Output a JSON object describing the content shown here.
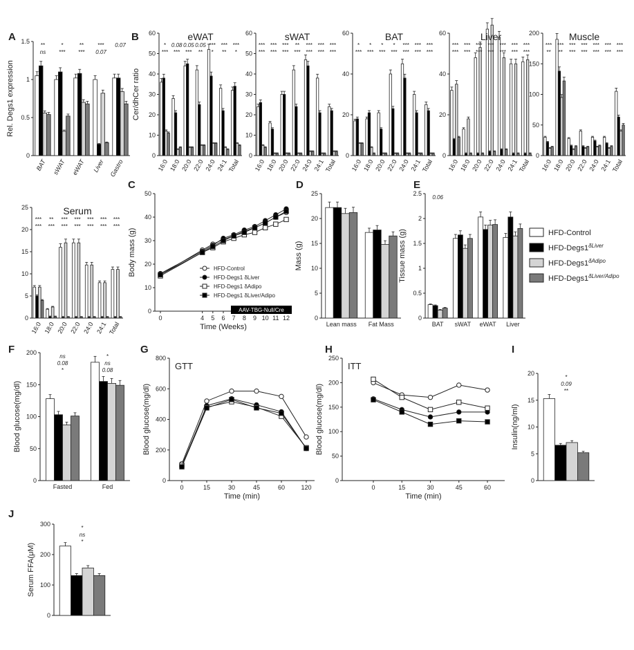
{
  "colors": {
    "control": "#ffffff",
    "liver": "#000000",
    "adipo": "#d4d4d4",
    "liver_adipo": "#7a7a7a",
    "stroke": "#222222"
  },
  "legend_main": {
    "entries": [
      {
        "label": "HFD-Control",
        "sub": ""
      },
      {
        "label": "HFD-Degs1",
        "sub": "δLiver"
      },
      {
        "label": "HFD-Degs1",
        "sub": "δAdipo"
      },
      {
        "label": "HFD-Degs1",
        "sub": "δLiver/Adipo"
      }
    ]
  },
  "chart_data": [
    {
      "id": "A",
      "type": "bar",
      "panel_label": "A",
      "ylabel": "Rel. Degs1 expression",
      "ylim": [
        0,
        1.5
      ],
      "yticks": [
        0,
        0.5,
        1.0,
        1.5
      ],
      "categories": [
        "BAT",
        "sWAT",
        "eWAT",
        "Liver",
        "Gastro"
      ],
      "series": [
        {
          "name": "HFD-Control",
          "values": [
            1.05,
            1.0,
            1.02,
            1.0,
            1.02
          ]
        },
        {
          "name": "HFD-Degs1 δLiver",
          "values": [
            1.18,
            1.1,
            1.08,
            0.15,
            1.02
          ]
        },
        {
          "name": "HFD-Degs1 δAdipo",
          "values": [
            0.56,
            0.32,
            0.7,
            0.82,
            0.84
          ]
        },
        {
          "name": "HFD-Degs1 δLiver/Adipo",
          "values": [
            0.54,
            0.52,
            0.68,
            0.17,
            0.68
          ]
        }
      ],
      "annotations": [
        "**",
        "*",
        "**",
        "***",
        "0.07",
        "ns",
        "***",
        "***",
        "0.07"
      ]
    },
    {
      "id": "B1",
      "type": "bar",
      "panel_label": "B",
      "title": "eWAT",
      "ylabel": "Cer/dhCer ratio",
      "ylim": [
        0,
        60
      ],
      "yticks": [
        0,
        10,
        20,
        30,
        40,
        50,
        60
      ],
      "categories": [
        "16:0",
        "18:0",
        "20:0",
        "22:0",
        "24:0",
        "24:1",
        "Total"
      ],
      "series": [
        {
          "name": "HFD-Control",
          "values": [
            36,
            28,
            44,
            42,
            52,
            33,
            32
          ]
        },
        {
          "name": "HFD-Degs1 δLiver",
          "values": [
            38,
            21,
            45,
            25,
            39,
            22,
            34
          ]
        },
        {
          "name": "HFD-Degs1 δAdipo",
          "values": [
            12,
            3,
            4,
            5,
            6,
            4,
            6
          ]
        },
        {
          "name": "HFD-Degs1 δLiver/Adipo",
          "values": [
            11,
            4,
            4,
            5,
            6,
            3,
            5
          ]
        }
      ],
      "annotations": [
        "*",
        "0.08",
        "0.05",
        "0.05",
        "***",
        "***",
        "***",
        "***",
        "***",
        "***",
        "**",
        "*",
        "**",
        "*"
      ]
    },
    {
      "id": "B2",
      "type": "bar",
      "title": "sWAT",
      "ylim": [
        0,
        60
      ],
      "yticks": [
        0,
        10,
        20,
        30,
        40,
        50,
        60
      ],
      "categories": [
        "16:0",
        "18:0",
        "20:0",
        "22:0",
        "24:0",
        "24:1",
        "Total"
      ],
      "series": [
        {
          "name": "HFD-Control",
          "values": [
            24,
            16,
            30,
            42,
            47,
            38,
            24
          ]
        },
        {
          "name": "HFD-Degs1 δLiver",
          "values": [
            26,
            13,
            30,
            24,
            44,
            21,
            22
          ]
        },
        {
          "name": "HFD-Degs1 δAdipo",
          "values": [
            5,
            1,
            1,
            1,
            2,
            1,
            2
          ]
        },
        {
          "name": "HFD-Degs1 δLiver/Adipo",
          "values": [
            4,
            1,
            1,
            1,
            2,
            1,
            2
          ]
        }
      ],
      "annotations": [
        "***",
        "***",
        "***",
        "**",
        "***",
        "***",
        "***",
        "***",
        "***",
        "***",
        "***",
        "***",
        "***",
        "***"
      ]
    },
    {
      "id": "B3",
      "type": "bar",
      "title": "BAT",
      "ylim": [
        0,
        60
      ],
      "yticks": [
        0,
        20,
        40,
        60
      ],
      "categories": [
        "16:0",
        "18:0",
        "20:0",
        "22:0",
        "24:0",
        "24:1",
        "Total"
      ],
      "series": [
        {
          "name": "HFD-Control",
          "values": [
            17,
            18,
            21,
            40,
            45,
            30,
            25
          ]
        },
        {
          "name": "HFD-Degs1 δLiver",
          "values": [
            18,
            21,
            13,
            23,
            38,
            21,
            22
          ]
        },
        {
          "name": "HFD-Degs1 δAdipo",
          "values": [
            6,
            4,
            1,
            1,
            1,
            1,
            1
          ]
        },
        {
          "name": "HFD-Degs1 δLiver/Adipo",
          "values": [
            6,
            1,
            1,
            1,
            1,
            1,
            1
          ]
        }
      ],
      "annotations": [
        "*",
        "*",
        "*",
        "*",
        "***",
        "***",
        "***",
        "***",
        "***",
        "***",
        "***",
        "***",
        "***",
        "***"
      ]
    },
    {
      "id": "B4",
      "type": "bar",
      "title": "Liver",
      "ylim": [
        0,
        60
      ],
      "yticks": [
        0,
        20,
        40,
        60
      ],
      "categories": [
        "16:0",
        "18:0",
        "20:0",
        "22:0",
        "24:0",
        "24:1",
        "Total"
      ],
      "series": [
        {
          "name": "HFD-Control",
          "values": [
            32,
            13,
            48,
            62,
            58,
            45,
            46
          ]
        },
        {
          "name": "HFD-Degs1 δLiver",
          "values": [
            8,
            1,
            1,
            2,
            3,
            1,
            1
          ]
        },
        {
          "name": "HFD-Degs1 δAdipo",
          "values": [
            35,
            18,
            53,
            64,
            48,
            45,
            47
          ]
        },
        {
          "name": "HFD-Degs1 δLiver/Adipo",
          "values": [
            9,
            1,
            1,
            2,
            3,
            1,
            1
          ]
        }
      ],
      "annotations": [
        "***",
        "***",
        "***",
        "***",
        "***",
        "***",
        "***",
        "***",
        "***",
        "***",
        "***",
        "***",
        "***",
        "***"
      ]
    },
    {
      "id": "B5",
      "type": "bar",
      "title": "Muscle",
      "ylim": [
        0,
        200
      ],
      "yticks": [
        0,
        50,
        100,
        150,
        200
      ],
      "categories": [
        "16:0",
        "18:0",
        "20:0",
        "22:0",
        "24:0",
        "24:1",
        "Total"
      ],
      "series": [
        {
          "name": "HFD-Control",
          "values": [
            30,
            190,
            28,
            40,
            30,
            30,
            105
          ]
        },
        {
          "name": "HFD-Degs1 δLiver",
          "values": [
            22,
            138,
            16,
            15,
            24,
            20,
            63
          ]
        },
        {
          "name": "HFD-Degs1 δAdipo",
          "values": [
            12,
            95,
            10,
            12,
            14,
            12,
            40
          ]
        },
        {
          "name": "HFD-Degs1 δLiver/Adipo",
          "values": [
            14,
            122,
            15,
            14,
            16,
            15,
            50
          ]
        }
      ],
      "annotations": [
        "***",
        "***",
        "***",
        "***",
        "***",
        "***",
        "***",
        "**",
        "**",
        "***",
        "***",
        "***",
        "***",
        "***"
      ]
    },
    {
      "id": "Serum",
      "type": "bar",
      "title": "Serum",
      "ylim": [
        0,
        25
      ],
      "yticks": [
        0,
        5,
        10,
        15,
        20,
        25
      ],
      "categories": [
        "16:0",
        "18:0",
        "20:0",
        "22:0",
        "24:0",
        "24:1",
        "Total"
      ],
      "series": [
        {
          "name": "HFD-Control",
          "values": [
            7,
            2,
            16,
            17,
            12,
            8,
            11
          ]
        },
        {
          "name": "HFD-Degs1 δLiver",
          "values": [
            5,
            0.3,
            0.2,
            0.2,
            0.2,
            0.2,
            0.2
          ]
        },
        {
          "name": "HFD-Degs1 δAdipo",
          "values": [
            7,
            2.5,
            17,
            17,
            12,
            8,
            11
          ]
        },
        {
          "name": "HFD-Degs1 δLiver/Adipo",
          "values": [
            4,
            0.3,
            0.2,
            0.2,
            0.2,
            0.2,
            0.2
          ]
        }
      ],
      "annotations": [
        "***",
        "**",
        "***",
        "***",
        "***",
        "***",
        "***",
        "***",
        "***",
        "***",
        "***",
        "***",
        "***",
        "***"
      ]
    },
    {
      "id": "C",
      "type": "line",
      "panel_label": "C",
      "xlabel": "Time (Weeks)",
      "ylabel": "Body mass (g)",
      "ylim": [
        0,
        50
      ],
      "yticks": [
        0,
        10,
        20,
        30,
        40,
        50
      ],
      "x": [
        0,
        4,
        5,
        6,
        7,
        8,
        9,
        10,
        11,
        12
      ],
      "series": [
        {
          "name": "HFD-Control",
          "values": [
            15.5,
            26,
            28.5,
            30.5,
            32,
            34,
            35.5,
            37.5,
            40,
            42
          ]
        },
        {
          "name": "HFD-Degs1 δLiver",
          "values": [
            16,
            25.5,
            28,
            31,
            32.5,
            34.5,
            36,
            38.5,
            41,
            43.5
          ]
        },
        {
          "name": "HFD-Degs1 δAdipo",
          "values": [
            15,
            25,
            27,
            29.5,
            31,
            32.5,
            33.5,
            35.5,
            37,
            39
          ]
        },
        {
          "name": "HFD-Degs1 δLiver/Adipo",
          "values": [
            15.5,
            25,
            27.5,
            30,
            32,
            33.5,
            35.5,
            37.5,
            40,
            42.5
          ]
        }
      ],
      "legend": [
        "HFD-Control",
        "HFD-Degs1 δLiver",
        "HFD-Degs1 δAdipo",
        "HFD-Degs1 δLiver/Adipo"
      ],
      "box_label": "AAV-TBG-Null/Cre"
    },
    {
      "id": "D",
      "type": "bar",
      "panel_label": "D",
      "ylabel": "Mass (g)",
      "ylim": [
        0,
        25
      ],
      "yticks": [
        0,
        5,
        10,
        15,
        20,
        25
      ],
      "categories": [
        "Lean mass",
        "Fat Mass"
      ],
      "series": [
        {
          "name": "HFD-Control",
          "values": [
            22.2,
            17.2
          ]
        },
        {
          "name": "HFD-Degs1 δLiver",
          "values": [
            22.2,
            17.7
          ]
        },
        {
          "name": "HFD-Degs1 δAdipo",
          "values": [
            21.0,
            14.8
          ]
        },
        {
          "name": "HFD-Degs1 δLiver/Adipo",
          "values": [
            21.2,
            16.5
          ]
        }
      ]
    },
    {
      "id": "E",
      "type": "bar",
      "panel_label": "E",
      "ylabel": "Tissue mass (g)",
      "ylim": [
        0,
        2.5
      ],
      "yticks": [
        0,
        0.5,
        1.0,
        1.5,
        2.0,
        2.5
      ],
      "categories": [
        "BAT",
        "sWAT",
        "eWAT",
        "Liver"
      ],
      "series": [
        {
          "name": "HFD-Control",
          "values": [
            0.27,
            1.6,
            2.03,
            1.62
          ]
        },
        {
          "name": "HFD-Degs1 δLiver",
          "values": [
            0.25,
            1.67,
            1.78,
            2.03
          ]
        },
        {
          "name": "HFD-Degs1 δAdipo",
          "values": [
            0.16,
            1.4,
            1.87,
            1.65
          ]
        },
        {
          "name": "HFD-Degs1 δLiver/Adipo",
          "values": [
            0.2,
            1.6,
            1.88,
            1.8
          ]
        }
      ],
      "annotations": [
        "0.06"
      ]
    },
    {
      "id": "F",
      "type": "bar",
      "panel_label": "F",
      "ylabel": "Blood glucose(mg/dl)",
      "ylim": [
        0,
        200
      ],
      "yticks": [
        0,
        50,
        100,
        150,
        200
      ],
      "categories": [
        "Fasted",
        "Fed"
      ],
      "series": [
        {
          "name": "HFD-Control",
          "values": [
            128,
            185
          ]
        },
        {
          "name": "HFD-Degs1 δLiver",
          "values": [
            103,
            155
          ]
        },
        {
          "name": "HFD-Degs1 δAdipo",
          "values": [
            87,
            152
          ]
        },
        {
          "name": "HFD-Degs1 δLiver/Adipo",
          "values": [
            101,
            149
          ]
        }
      ],
      "annotations": [
        "ns",
        "*",
        "0.08",
        "ns",
        "*",
        "0.08"
      ]
    },
    {
      "id": "G",
      "type": "line",
      "panel_label": "G",
      "title": "GTT",
      "xlabel": "Time (min)",
      "ylabel": "Blood glucose(mg/dl)",
      "ylim": [
        0,
        800
      ],
      "yticks": [
        0,
        200,
        400,
        600,
        800
      ],
      "x": [
        "0",
        "15",
        "30",
        "45",
        "60",
        "120"
      ],
      "series": [
        {
          "name": "HFD-Control",
          "values": [
            110,
            520,
            585,
            585,
            550,
            285
          ]
        },
        {
          "name": "HFD-Degs1 δLiver",
          "values": [
            95,
            490,
            535,
            495,
            450,
            210
          ]
        },
        {
          "name": "HFD-Degs1 δAdipo",
          "values": [
            100,
            480,
            515,
            480,
            420,
            215
          ]
        },
        {
          "name": "HFD-Degs1 δLiver/Adipo",
          "values": [
            90,
            475,
            530,
            475,
            440,
            210
          ]
        }
      ],
      "annotations": [
        "*",
        "***",
        "*",
        "***"
      ]
    },
    {
      "id": "H",
      "type": "line",
      "panel_label": "H",
      "title": "ITT",
      "xlabel": "Time (min)",
      "ylabel": "Blood glucose(mg/dl)",
      "ylim": [
        0,
        250
      ],
      "yticks": [
        0,
        50,
        100,
        150,
        200,
        250
      ],
      "x": [
        "0",
        "15",
        "30",
        "45",
        "60"
      ],
      "series": [
        {
          "name": "HFD-Control",
          "values": [
            200,
            175,
            170,
            195,
            185
          ]
        },
        {
          "name": "HFD-Degs1 δLiver",
          "values": [
            167,
            145,
            130,
            140,
            140
          ]
        },
        {
          "name": "HFD-Degs1 δAdipo",
          "values": [
            207,
            170,
            145,
            160,
            148
          ]
        },
        {
          "name": "HFD-Degs1 δLiver/Adipo",
          "values": [
            165,
            140,
            115,
            122,
            120
          ]
        }
      ],
      "annotations": [
        "***",
        "*",
        "**",
        "***"
      ]
    },
    {
      "id": "I",
      "type": "bar",
      "panel_label": "I",
      "ylabel": "Insulin(ng/ml)",
      "ylim": [
        0,
        20
      ],
      "yticks": [
        0,
        5,
        10,
        15,
        20
      ],
      "categories": [
        ""
      ],
      "series": [
        {
          "name": "HFD-Control",
          "values": [
            15.3
          ]
        },
        {
          "name": "HFD-Degs1 δLiver",
          "values": [
            6.6
          ]
        },
        {
          "name": "HFD-Degs1 δAdipo",
          "values": [
            7.1
          ]
        },
        {
          "name": "HFD-Degs1 δLiver/Adipo",
          "values": [
            5.2
          ]
        }
      ],
      "annotations": [
        "*",
        "0.09",
        "**"
      ]
    },
    {
      "id": "J",
      "type": "bar",
      "panel_label": "J",
      "ylabel": "Serum FFA(μM)",
      "ylim": [
        0,
        300
      ],
      "yticks": [
        0,
        100,
        200,
        300
      ],
      "categories": [
        ""
      ],
      "series": [
        {
          "name": "HFD-Control",
          "values": [
            228
          ]
        },
        {
          "name": "HFD-Degs1 δLiver",
          "values": [
            131
          ]
        },
        {
          "name": "HFD-Degs1 δAdipo",
          "values": [
            156
          ]
        },
        {
          "name": "HFD-Degs1 δLiver/Adipo",
          "values": [
            131
          ]
        }
      ],
      "annotations": [
        "*",
        "ns",
        "*"
      ]
    }
  ]
}
